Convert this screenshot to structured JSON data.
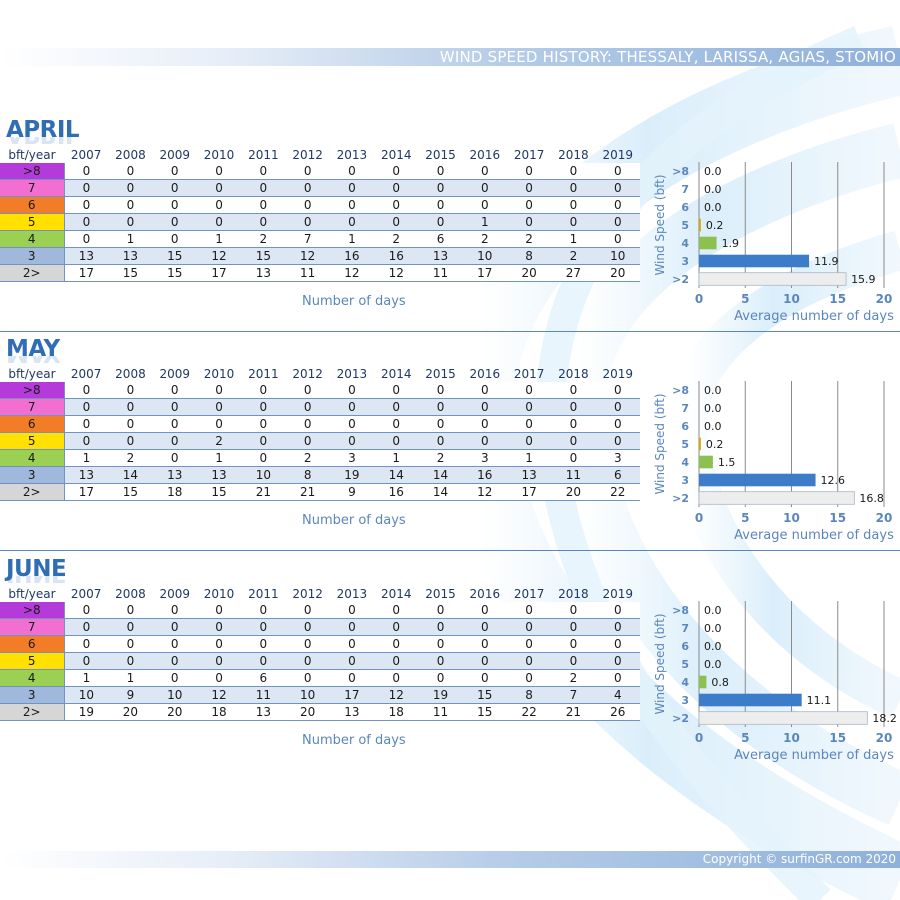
{
  "header": {
    "title": "WIND SPEED HISTORY: THESSALY, LARISSA, AGIAS, STOMIO"
  },
  "footer": {
    "copyright": "Copyright © surfinGR.com 2020"
  },
  "table_header_label": "bft/year",
  "years": [
    "2007",
    "2008",
    "2009",
    "2010",
    "2011",
    "2012",
    "2013",
    "2014",
    "2015",
    "2016",
    "2017",
    "2018",
    "2019"
  ],
  "bft_rows": [
    {
      "label": ">8",
      "color": "#b43bd9"
    },
    {
      "label": "7",
      "color": "#f26fd1"
    },
    {
      "label": "6",
      "color": "#f27c27"
    },
    {
      "label": "5",
      "color": "#ffe000"
    },
    {
      "label": "4",
      "color": "#9bd052"
    },
    {
      "label": "3",
      "color": "#9fb8dc"
    },
    {
      "label": "2>",
      "color": "#d6d6d6"
    }
  ],
  "table_xcaption": "Number of days",
  "bar_chart_labels": {
    "ylabel": "Wind Speed (bft)",
    "xlabel": "Average number of days",
    "categories": [
      ">8",
      "7",
      "6",
      "5",
      "4",
      "3",
      ">2"
    ],
    "xticks": [
      "0",
      "5",
      "10",
      "15",
      "20"
    ],
    "xlim": [
      0,
      20
    ],
    "bar_colors": [
      "#7fbf3f",
      "#7fbf3f",
      "#7fbf3f",
      "#d4a800",
      "#8cc04f",
      "#3d7cc9",
      "#ededed"
    ]
  },
  "chart_data": [
    {
      "type": "table",
      "title": "APRIL",
      "rows": [
        {
          "bft": ">8",
          "values": [
            0,
            0,
            0,
            0,
            0,
            0,
            0,
            0,
            0,
            0,
            0,
            0,
            0
          ]
        },
        {
          "bft": "7",
          "values": [
            0,
            0,
            0,
            0,
            0,
            0,
            0,
            0,
            0,
            0,
            0,
            0,
            0
          ]
        },
        {
          "bft": "6",
          "values": [
            0,
            0,
            0,
            0,
            0,
            0,
            0,
            0,
            0,
            0,
            0,
            0,
            0
          ]
        },
        {
          "bft": "5",
          "values": [
            0,
            0,
            0,
            0,
            0,
            0,
            0,
            0,
            0,
            1,
            0,
            0,
            0
          ]
        },
        {
          "bft": "4",
          "values": [
            0,
            1,
            0,
            1,
            2,
            7,
            1,
            2,
            6,
            2,
            2,
            1,
            0
          ]
        },
        {
          "bft": "3",
          "values": [
            13,
            13,
            15,
            12,
            15,
            12,
            16,
            16,
            13,
            10,
            8,
            2,
            10
          ]
        },
        {
          "bft": "2>",
          "values": [
            17,
            15,
            15,
            17,
            13,
            11,
            12,
            12,
            11,
            17,
            20,
            27,
            20
          ]
        }
      ],
      "average": {
        "type": "bar",
        "categories": [
          ">8",
          "7",
          "6",
          "5",
          "4",
          "3",
          ">2"
        ],
        "values": [
          0.0,
          0.0,
          0.0,
          0.2,
          1.9,
          11.9,
          15.9
        ],
        "value_labels": [
          "0.0",
          "0.0",
          "0.0",
          "0.2",
          "1.9",
          "11.9",
          "15.9"
        ]
      }
    },
    {
      "type": "table",
      "title": "MAY",
      "rows": [
        {
          "bft": ">8",
          "values": [
            0,
            0,
            0,
            0,
            0,
            0,
            0,
            0,
            0,
            0,
            0,
            0,
            0
          ]
        },
        {
          "bft": "7",
          "values": [
            0,
            0,
            0,
            0,
            0,
            0,
            0,
            0,
            0,
            0,
            0,
            0,
            0
          ]
        },
        {
          "bft": "6",
          "values": [
            0,
            0,
            0,
            0,
            0,
            0,
            0,
            0,
            0,
            0,
            0,
            0,
            0
          ]
        },
        {
          "bft": "5",
          "values": [
            0,
            0,
            0,
            2,
            0,
            0,
            0,
            0,
            0,
            0,
            0,
            0,
            0
          ]
        },
        {
          "bft": "4",
          "values": [
            1,
            2,
            0,
            1,
            0,
            2,
            3,
            1,
            2,
            3,
            1,
            0,
            3
          ]
        },
        {
          "bft": "3",
          "values": [
            13,
            14,
            13,
            13,
            10,
            8,
            19,
            14,
            14,
            16,
            13,
            11,
            6
          ]
        },
        {
          "bft": "2>",
          "values": [
            17,
            15,
            18,
            15,
            21,
            21,
            9,
            16,
            14,
            12,
            17,
            20,
            22
          ]
        }
      ],
      "average": {
        "type": "bar",
        "categories": [
          ">8",
          "7",
          "6",
          "5",
          "4",
          "3",
          ">2"
        ],
        "values": [
          0.0,
          0.0,
          0.0,
          0.2,
          1.5,
          12.6,
          16.8
        ],
        "value_labels": [
          "0.0",
          "0.0",
          "0.0",
          "0.2",
          "1.5",
          "12.6",
          "16.8"
        ]
      }
    },
    {
      "type": "table",
      "title": "JUNE",
      "rows": [
        {
          "bft": ">8",
          "values": [
            0,
            0,
            0,
            0,
            0,
            0,
            0,
            0,
            0,
            0,
            0,
            0,
            0
          ]
        },
        {
          "bft": "7",
          "values": [
            0,
            0,
            0,
            0,
            0,
            0,
            0,
            0,
            0,
            0,
            0,
            0,
            0
          ]
        },
        {
          "bft": "6",
          "values": [
            0,
            0,
            0,
            0,
            0,
            0,
            0,
            0,
            0,
            0,
            0,
            0,
            0
          ]
        },
        {
          "bft": "5",
          "values": [
            0,
            0,
            0,
            0,
            0,
            0,
            0,
            0,
            0,
            0,
            0,
            0,
            0
          ]
        },
        {
          "bft": "4",
          "values": [
            1,
            1,
            0,
            0,
            6,
            0,
            0,
            0,
            0,
            0,
            0,
            2,
            0
          ]
        },
        {
          "bft": "3",
          "values": [
            10,
            9,
            10,
            12,
            11,
            10,
            17,
            12,
            19,
            15,
            8,
            7,
            4
          ]
        },
        {
          "bft": "2>",
          "values": [
            19,
            20,
            20,
            18,
            13,
            20,
            13,
            18,
            11,
            15,
            22,
            21,
            26
          ]
        }
      ],
      "average": {
        "type": "bar",
        "categories": [
          ">8",
          "7",
          "6",
          "5",
          "4",
          "3",
          ">2"
        ],
        "values": [
          0.0,
          0.0,
          0.0,
          0.0,
          0.8,
          11.1,
          18.2
        ],
        "value_labels": [
          "0.0",
          "0.0",
          "0.0",
          "0.0",
          "0.8",
          "11.1",
          "18.2"
        ]
      }
    }
  ]
}
